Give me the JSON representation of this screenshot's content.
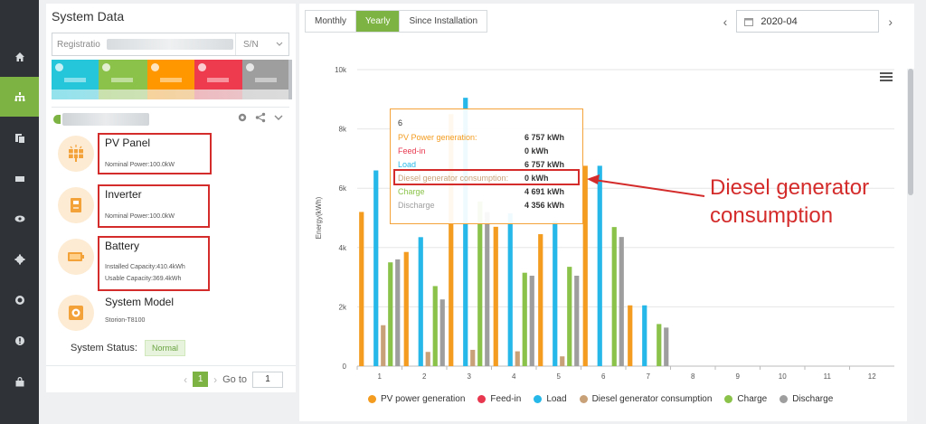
{
  "nav": {
    "items": [
      {
        "name": "home-icon"
      },
      {
        "name": "plant-icon"
      },
      {
        "name": "report-icon"
      },
      {
        "name": "device-icon"
      },
      {
        "name": "monitor-icon"
      },
      {
        "name": "settings-icon"
      },
      {
        "name": "service-icon"
      },
      {
        "name": "info-icon"
      },
      {
        "name": "lock-icon"
      }
    ],
    "active_index": 1,
    "active_color": "#7cb342"
  },
  "left": {
    "title": "System Data",
    "search": {
      "placeholder": "Registratio",
      "select_value": "S/N"
    },
    "status_colors": [
      "#26c6da",
      "#8bc34a",
      "#ff9800",
      "#ef3b4e",
      "#9e9e9e"
    ],
    "devices": [
      {
        "name": "PV Panel",
        "lines": [
          "Nominal Power:100.0kW"
        ]
      },
      {
        "name": "Inverter",
        "lines": [
          "Nominal Power:100.0kW"
        ]
      },
      {
        "name": "Battery",
        "lines": [
          "Installed Capacity:410.4kWh",
          "Usable Capacity:369.4kWh"
        ]
      },
      {
        "name": "System Model",
        "lines": [
          "Storion-T8100"
        ]
      }
    ],
    "system_status_label": "System Status:",
    "system_status_value": "Normal",
    "pager": {
      "prev": "‹",
      "current": "1",
      "next": "›",
      "goto_label": "Go to",
      "goto_value": "1"
    }
  },
  "right": {
    "tabs": [
      {
        "label": "Monthly",
        "active": false
      },
      {
        "label": "Yearly",
        "active": true
      },
      {
        "label": "Since Installation",
        "active": false
      }
    ],
    "date_prev": "‹",
    "date_value": "2020-04",
    "date_next": "›",
    "annotation": [
      "Diesel generator",
      "consumption"
    ]
  },
  "chart_data": {
    "type": "bar",
    "categories": [
      "1",
      "2",
      "3",
      "4",
      "5",
      "6",
      "7",
      "8",
      "9",
      "10",
      "11",
      "12"
    ],
    "ylabel": "Energy(kWh)",
    "ylim": [
      0,
      10000
    ],
    "yticks": [
      "0",
      "2k",
      "4k",
      "6k",
      "8k",
      "10k"
    ],
    "ytick_values": [
      0,
      2000,
      4000,
      6000,
      8000,
      10000
    ],
    "series": [
      {
        "name": "PV power generation",
        "color": "#f39c1f",
        "values": [
          5200,
          3850,
          8500,
          4700,
          4450,
          6757,
          2050,
          0,
          0,
          0,
          0,
          0
        ]
      },
      {
        "name": "Feed-in",
        "color": "#e8384f",
        "values": [
          0,
          0,
          0,
          0,
          0,
          0,
          0,
          0,
          0,
          0,
          0,
          0
        ]
      },
      {
        "name": "Load",
        "color": "#26b8e8",
        "values": [
          6600,
          4350,
          9050,
          5150,
          4900,
          6757,
          2050,
          0,
          0,
          0,
          0,
          0
        ]
      },
      {
        "name": "Diesel generator consumption",
        "color": "#c9a179",
        "values": [
          1380,
          480,
          550,
          500,
          330,
          0,
          0,
          0,
          0,
          0,
          0,
          0
        ]
      },
      {
        "name": "Charge",
        "color": "#8bc34a",
        "values": [
          3500,
          2700,
          5550,
          3150,
          3350,
          4691,
          1420,
          0,
          0,
          0,
          0,
          0
        ]
      },
      {
        "name": "Discharge",
        "color": "#9e9e9e",
        "values": [
          3600,
          2250,
          5200,
          3050,
          3050,
          4356,
          1300,
          0,
          0,
          0,
          0,
          0
        ]
      }
    ],
    "legend_position": "bottom",
    "tooltip": {
      "title": "6",
      "rows": [
        {
          "label": "PV Power generation:",
          "value": "6 757 kWh",
          "color": "#f39c1f"
        },
        {
          "label": "Feed-in",
          "value": "0 kWh",
          "color": "#e8384f"
        },
        {
          "label": "Load",
          "value": "6 757 kWh",
          "color": "#26b8e8"
        },
        {
          "label": "Diesel generator consumption:",
          "value": "0 kWh",
          "color": "#c9a179"
        },
        {
          "label": "Charge",
          "value": "4 691 kWh",
          "color": "#8bc34a"
        },
        {
          "label": "Discharge",
          "value": "4 356 kWh",
          "color": "#9e9e9e"
        }
      ]
    }
  }
}
